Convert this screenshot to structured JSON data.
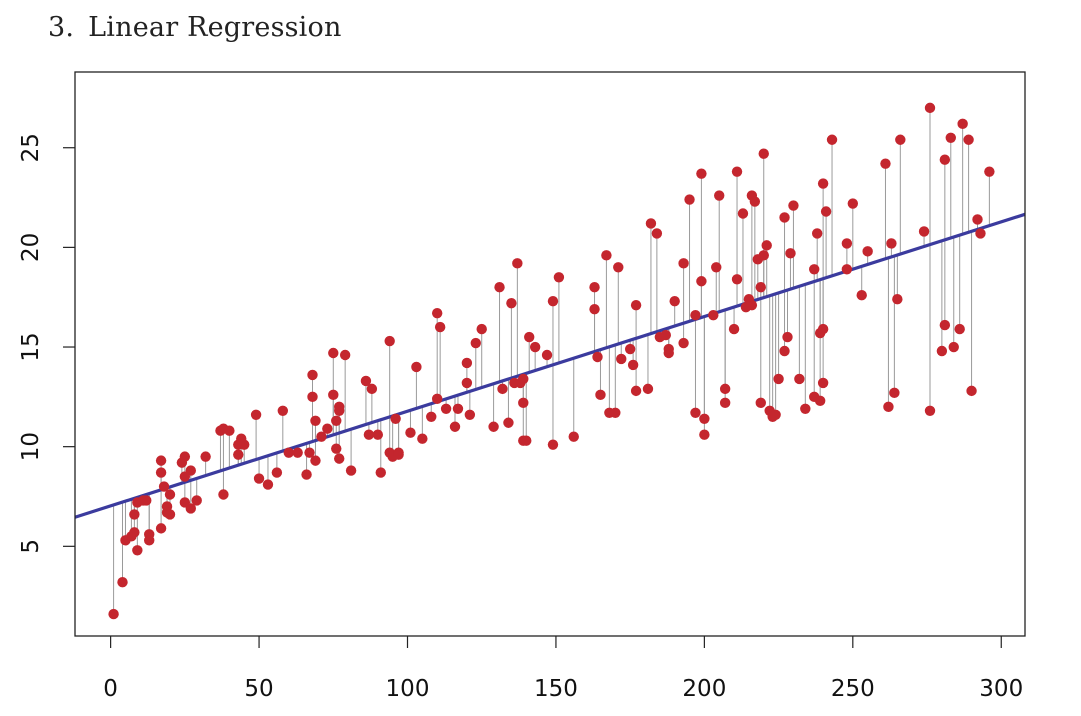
{
  "heading": {
    "number": "3.",
    "title": "Linear Regression"
  },
  "chart_data": {
    "type": "scatter",
    "title": "",
    "xlabel": "",
    "ylabel": "",
    "xlim": [
      -12,
      308
    ],
    "ylim": [
      0.5,
      28.8
    ],
    "grid": false,
    "x_ticks": [
      0,
      50,
      100,
      150,
      200,
      250,
      300
    ],
    "y_ticks": [
      5,
      10,
      15,
      20,
      25
    ],
    "colors": {
      "points": "#c4262e",
      "fit_line": "#3b3b9e",
      "residuals": "#9a9a9a",
      "frame": "#222222"
    },
    "fit_line": {
      "intercept": 7.03,
      "slope": 0.0475
    },
    "points": [
      [
        1,
        1.6
      ],
      [
        4,
        3.2
      ],
      [
        5,
        5.3
      ],
      [
        7,
        5.5
      ],
      [
        8,
        6.6
      ],
      [
        8,
        5.7
      ],
      [
        9,
        4.8
      ],
      [
        9,
        7.2
      ],
      [
        11,
        7.3
      ],
      [
        12,
        7.3
      ],
      [
        13,
        5.3
      ],
      [
        13,
        5.6
      ],
      [
        17,
        5.9
      ],
      [
        17,
        8.7
      ],
      [
        17,
        9.3
      ],
      [
        18,
        8.0
      ],
      [
        19,
        7.0
      ],
      [
        19,
        6.7
      ],
      [
        20,
        6.6
      ],
      [
        20,
        7.6
      ],
      [
        24,
        9.2
      ],
      [
        25,
        7.2
      ],
      [
        25,
        8.5
      ],
      [
        25,
        9.5
      ],
      [
        27,
        8.8
      ],
      [
        27,
        6.9
      ],
      [
        29,
        7.3
      ],
      [
        32,
        9.5
      ],
      [
        37,
        10.8
      ],
      [
        38,
        10.9
      ],
      [
        38,
        7.6
      ],
      [
        40,
        10.8
      ],
      [
        43,
        9.6
      ],
      [
        43,
        10.1
      ],
      [
        44,
        10.4
      ],
      [
        45,
        10.1
      ],
      [
        49,
        11.6
      ],
      [
        50,
        8.4
      ],
      [
        53,
        8.1
      ],
      [
        56,
        8.7
      ],
      [
        58,
        11.8
      ],
      [
        60,
        9.7
      ],
      [
        63,
        9.7
      ],
      [
        66,
        8.6
      ],
      [
        67,
        9.7
      ],
      [
        68,
        12.5
      ],
      [
        68,
        13.6
      ],
      [
        69,
        9.3
      ],
      [
        69,
        11.3
      ],
      [
        71,
        10.5
      ],
      [
        73,
        10.9
      ],
      [
        75,
        14.7
      ],
      [
        75,
        12.6
      ],
      [
        76,
        11.3
      ],
      [
        76,
        9.9
      ],
      [
        77,
        12.0
      ],
      [
        77,
        11.8
      ],
      [
        77,
        9.4
      ],
      [
        79,
        14.6
      ],
      [
        81,
        8.8
      ],
      [
        86,
        13.3
      ],
      [
        87,
        10.6
      ],
      [
        88,
        12.9
      ],
      [
        90,
        10.6
      ],
      [
        91,
        8.7
      ],
      [
        94,
        15.3
      ],
      [
        94,
        9.7
      ],
      [
        95,
        9.5
      ],
      [
        96,
        11.4
      ],
      [
        97,
        9.7
      ],
      [
        97,
        9.6
      ],
      [
        101,
        10.7
      ],
      [
        103,
        14.0
      ],
      [
        105,
        10.4
      ],
      [
        108,
        11.5
      ],
      [
        110,
        16.7
      ],
      [
        110,
        12.4
      ],
      [
        111,
        16.0
      ],
      [
        113,
        11.9
      ],
      [
        116,
        11.0
      ],
      [
        117,
        11.9
      ],
      [
        120,
        13.2
      ],
      [
        120,
        14.2
      ],
      [
        121,
        11.6
      ],
      [
        123,
        15.2
      ],
      [
        125,
        15.9
      ],
      [
        129,
        11.0
      ],
      [
        131,
        18.0
      ],
      [
        132,
        12.9
      ],
      [
        134,
        11.2
      ],
      [
        135,
        17.2
      ],
      [
        136,
        13.2
      ],
      [
        137,
        19.2
      ],
      [
        138,
        13.2
      ],
      [
        139,
        12.2
      ],
      [
        139,
        13.4
      ],
      [
        139,
        10.3
      ],
      [
        140,
        10.3
      ],
      [
        141,
        15.5
      ],
      [
        143,
        15.0
      ],
      [
        147,
        14.6
      ],
      [
        149,
        17.3
      ],
      [
        149,
        10.1
      ],
      [
        151,
        18.5
      ],
      [
        156,
        10.5
      ],
      [
        163,
        18.0
      ],
      [
        163,
        16.9
      ],
      [
        164,
        14.5
      ],
      [
        165,
        12.6
      ],
      [
        167,
        19.6
      ],
      [
        168,
        11.7
      ],
      [
        170,
        11.7
      ],
      [
        171,
        19.0
      ],
      [
        172,
        14.4
      ],
      [
        175,
        14.9
      ],
      [
        176,
        14.1
      ],
      [
        177,
        17.1
      ],
      [
        177,
        12.8
      ],
      [
        181,
        12.9
      ],
      [
        182,
        21.2
      ],
      [
        184,
        20.7
      ],
      [
        185,
        15.5
      ],
      [
        187,
        15.6
      ],
      [
        188,
        14.7
      ],
      [
        188,
        14.9
      ],
      [
        190,
        17.3
      ],
      [
        193,
        15.2
      ],
      [
        193,
        19.2
      ],
      [
        195,
        22.4
      ],
      [
        197,
        11.7
      ],
      [
        197,
        16.6
      ],
      [
        199,
        23.7
      ],
      [
        199,
        18.3
      ],
      [
        200,
        10.6
      ],
      [
        200,
        11.4
      ],
      [
        203,
        16.6
      ],
      [
        204,
        19.0
      ],
      [
        205,
        22.6
      ],
      [
        207,
        12.9
      ],
      [
        207,
        12.2
      ],
      [
        210,
        15.9
      ],
      [
        211,
        23.8
      ],
      [
        211,
        18.4
      ],
      [
        213,
        21.7
      ],
      [
        214,
        17.0
      ],
      [
        215,
        17.4
      ],
      [
        216,
        17.1
      ],
      [
        216,
        22.6
      ],
      [
        217,
        22.3
      ],
      [
        218,
        19.4
      ],
      [
        219,
        18.0
      ],
      [
        219,
        12.2
      ],
      [
        220,
        19.6
      ],
      [
        220,
        24.7
      ],
      [
        221,
        20.1
      ],
      [
        222,
        11.8
      ],
      [
        223,
        11.5
      ],
      [
        224,
        11.6
      ],
      [
        225,
        13.4
      ],
      [
        227,
        14.8
      ],
      [
        227,
        21.5
      ],
      [
        228,
        15.5
      ],
      [
        229,
        19.7
      ],
      [
        230,
        22.1
      ],
      [
        232,
        13.4
      ],
      [
        234,
        11.9
      ],
      [
        237,
        18.9
      ],
      [
        237,
        12.5
      ],
      [
        238,
        20.7
      ],
      [
        239,
        12.3
      ],
      [
        239,
        15.7
      ],
      [
        240,
        23.2
      ],
      [
        240,
        15.9
      ],
      [
        240,
        13.2
      ],
      [
        241,
        21.8
      ],
      [
        243,
        25.4
      ],
      [
        248,
        18.9
      ],
      [
        248,
        20.2
      ],
      [
        250,
        22.2
      ],
      [
        253,
        17.6
      ],
      [
        255,
        19.8
      ],
      [
        261,
        24.2
      ],
      [
        262,
        12.0
      ],
      [
        263,
        20.2
      ],
      [
        264,
        12.7
      ],
      [
        265,
        17.4
      ],
      [
        266,
        25.4
      ],
      [
        274,
        20.8
      ],
      [
        276,
        11.8
      ],
      [
        276,
        27.0
      ],
      [
        280,
        14.8
      ],
      [
        281,
        16.1
      ],
      [
        281,
        24.4
      ],
      [
        283,
        25.5
      ],
      [
        284,
        15.0
      ],
      [
        286,
        15.9
      ],
      [
        287,
        26.2
      ],
      [
        289,
        25.4
      ],
      [
        290,
        12.8
      ],
      [
        292,
        21.4
      ],
      [
        293,
        20.7
      ],
      [
        296,
        23.8
      ]
    ]
  }
}
